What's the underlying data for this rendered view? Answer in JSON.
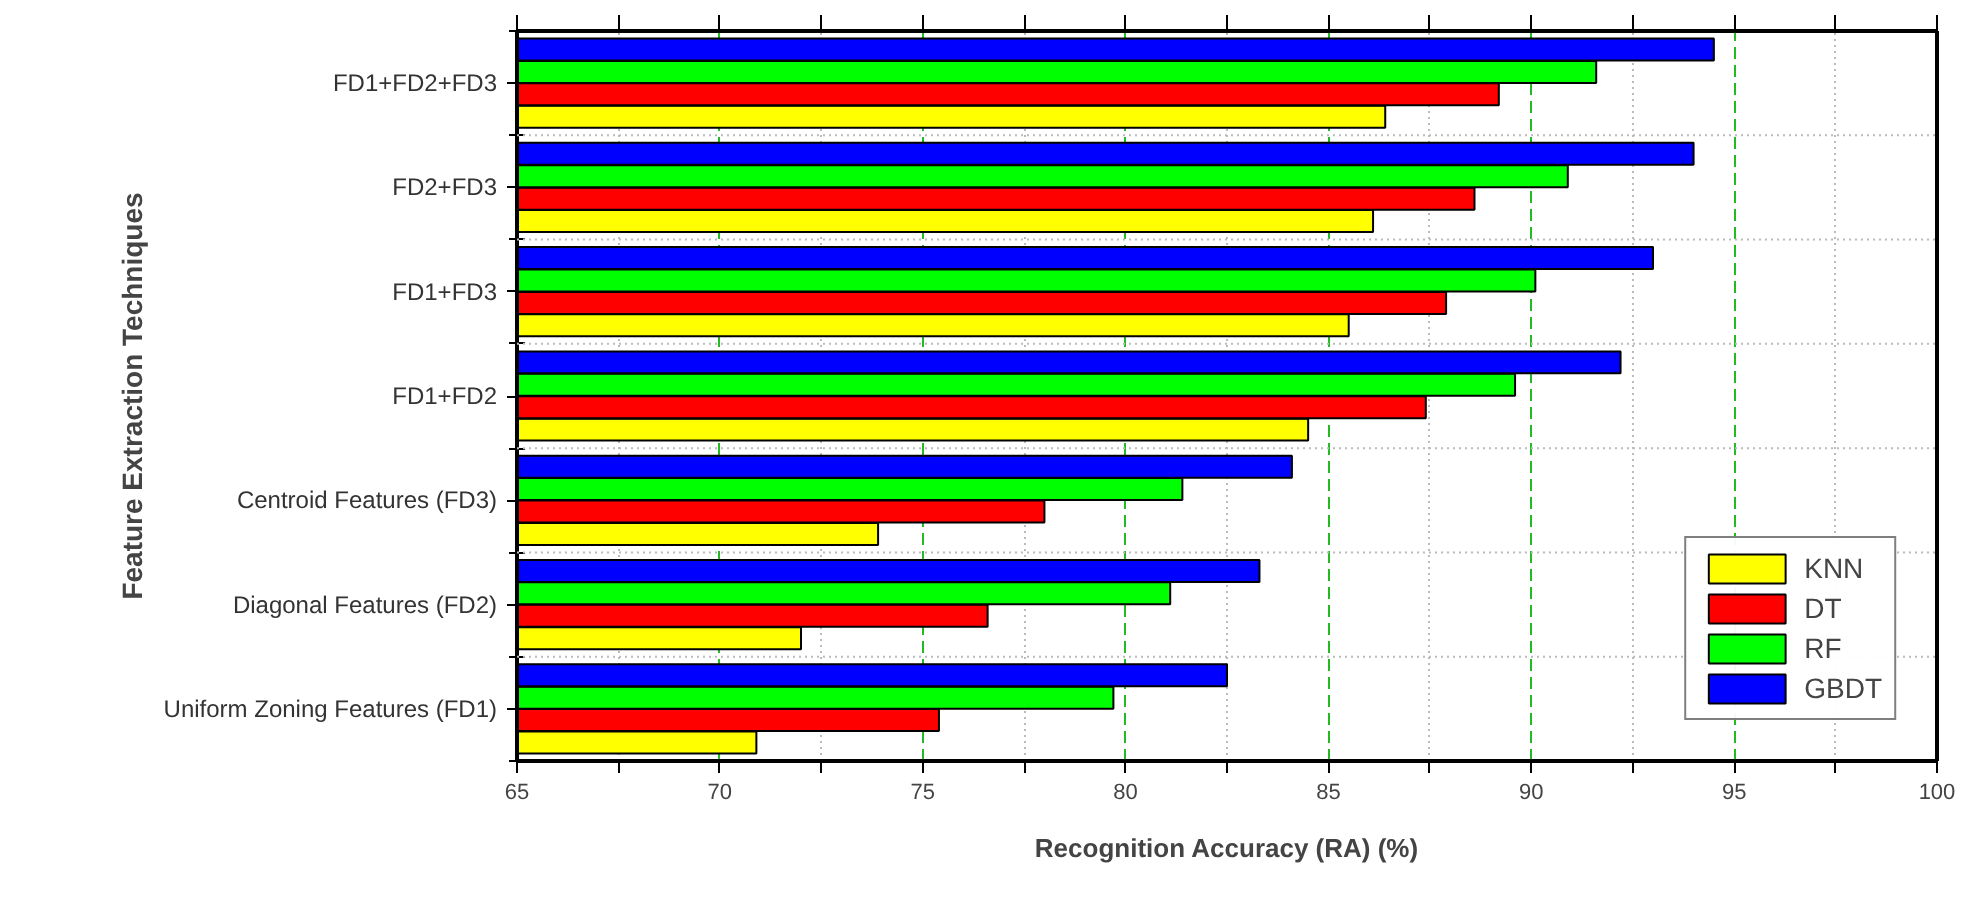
{
  "chart_data": {
    "type": "bar",
    "orientation": "horizontal",
    "xlabel": "Recognition Accuracy (RA) (%)",
    "ylabel": "Feature Extraction Techniques",
    "categories": [
      "FD1+FD2+FD3",
      "FD2+FD3",
      "FD1+FD3",
      "FD1+FD2",
      "Centroid Features (FD3)",
      "Diagonal Features (FD2)",
      "Uniform Zoning Features (FD1)"
    ],
    "series": [
      {
        "name": "KNN",
        "color": "#ffff00",
        "values": [
          86.4,
          86.1,
          85.5,
          84.5,
          73.9,
          72.0,
          70.9
        ]
      },
      {
        "name": "DT",
        "color": "#ff0000",
        "values": [
          89.2,
          88.6,
          87.9,
          87.4,
          78.0,
          76.6,
          75.4
        ]
      },
      {
        "name": "RF",
        "color": "#00ff00",
        "values": [
          91.6,
          90.9,
          90.1,
          89.6,
          81.4,
          81.1,
          79.7
        ]
      },
      {
        "name": "GBDT",
        "color": "#0000ff",
        "values": [
          94.5,
          94.0,
          93.0,
          92.2,
          84.1,
          83.3,
          82.5
        ]
      }
    ],
    "xlim": [
      65,
      100
    ],
    "xticks": [
      65,
      {
        "value": 67.5,
        "label": null
      },
      70,
      {
        "value": 72.5,
        "label": null
      },
      75,
      {
        "value": 77.5,
        "label": null
      },
      80,
      {
        "value": 82.5,
        "label": null
      },
      85,
      {
        "value": 87.5,
        "label": null
      },
      90,
      {
        "value": 92.5,
        "label": null
      },
      95,
      {
        "value": 97.5,
        "label": null
      },
      100
    ],
    "grid": "x",
    "legend": "bottom right"
  }
}
